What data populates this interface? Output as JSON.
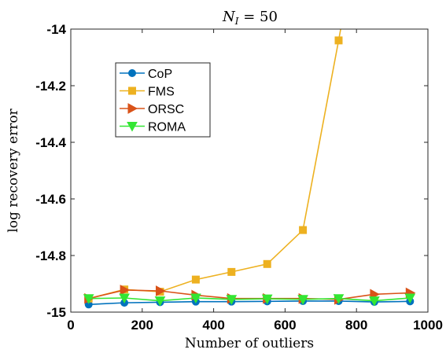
{
  "chart_data": {
    "type": "line",
    "title": "N_I = 50",
    "title_main": "N",
    "title_sub": "I",
    "title_rest": " = 50",
    "xlabel": "Number of outliers",
    "ylabel": "log recovery error",
    "xlim": [
      0,
      1000
    ],
    "ylim": [
      -15,
      -14
    ],
    "xticks": [
      0,
      200,
      400,
      600,
      800,
      1000
    ],
    "xtick_labels": [
      "0",
      "200",
      "400",
      "600",
      "800",
      "1000"
    ],
    "yticks": [
      -15,
      -14.8,
      -14.6,
      -14.4,
      -14.2,
      -14
    ],
    "ytick_labels": [
      "-15",
      "-14.8",
      "-14.6",
      "-14.4",
      "-14.2",
      "-14"
    ],
    "grid": false,
    "legend_position": "top-left",
    "x": [
      50,
      150,
      250,
      350,
      450,
      550,
      650,
      750,
      850,
      950
    ],
    "series": [
      {
        "name": "CoP",
        "color": "#0072BD",
        "marker": "circle",
        "values": [
          -14.973,
          -14.967,
          -14.965,
          -14.963,
          -14.963,
          -14.962,
          -14.961,
          -14.961,
          -14.964,
          -14.962
        ]
      },
      {
        "name": "FMS",
        "color": "#EDB120",
        "marker": "square",
        "values": [
          -14.952,
          -14.92,
          -14.928,
          -14.885,
          -14.858,
          -14.83,
          -14.71,
          -14.04,
          null,
          null
        ],
        "extra_segment_to": [
          760,
          -13.97
        ]
      },
      {
        "name": "ORSC",
        "color": "#D95319",
        "marker": "triangle-right",
        "values": [
          -14.952,
          -14.922,
          -14.925,
          -14.94,
          -14.952,
          -14.952,
          -14.952,
          -14.955,
          -14.937,
          -14.932
        ]
      },
      {
        "name": "ROMA",
        "color": "#33E633",
        "marker": "triangle-down",
        "values": [
          -14.952,
          -14.95,
          -14.96,
          -14.95,
          -14.955,
          -14.953,
          -14.955,
          -14.952,
          -14.96,
          -14.95
        ]
      }
    ]
  }
}
